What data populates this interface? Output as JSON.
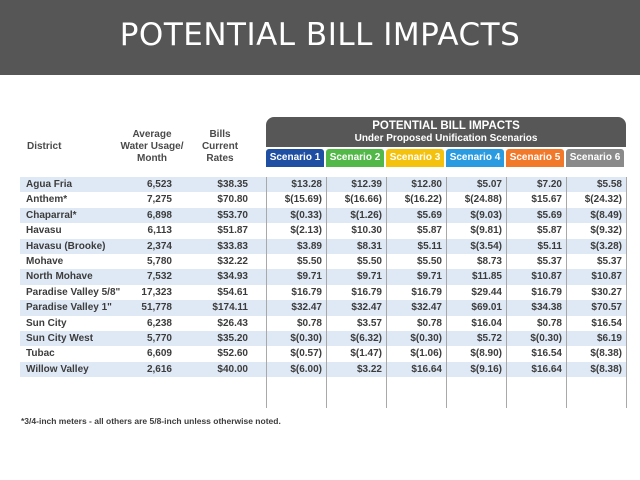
{
  "title": "POTENTIAL BILL IMPACTS",
  "headers": {
    "district": "District",
    "usage": [
      "Average",
      "Water Usage/",
      "Month"
    ],
    "bills": [
      "Bills",
      "Current",
      "Rates"
    ]
  },
  "banner": {
    "title": "POTENTIAL BILL IMPACTS",
    "subtitle": "Under Proposed Unification Scenarios"
  },
  "scenarios": [
    {
      "label": "Scenario 1",
      "color": "#1e4fa3"
    },
    {
      "label": "Scenario 2",
      "color": "#52b848"
    },
    {
      "label": "Scenario 3",
      "color": "#f4c20d"
    },
    {
      "label": "Scenario 4",
      "color": "#2a9be0"
    },
    {
      "label": "Scenario 5",
      "color": "#f2782a"
    },
    {
      "label": "Scenario 6",
      "color": "#8a8a8a"
    }
  ],
  "rows": [
    {
      "district": "Agua Fria",
      "usage": "6,523",
      "bills": "$38.35",
      "s": [
        "$13.28",
        "$12.39",
        "$12.80",
        "$5.07",
        "$7.20",
        "$5.58"
      ]
    },
    {
      "district": "Anthem*",
      "usage": "7,275",
      "bills": "$70.80",
      "s": [
        "$(15.69)",
        "$(16.66)",
        "$(16.22)",
        "$(24.88)",
        "$15.67",
        "$(24.32)"
      ]
    },
    {
      "district": "Chaparral*",
      "usage": "6,898",
      "bills": "$53.70",
      "s": [
        "$(0.33)",
        "$(1.26)",
        "$5.69",
        "$(9.03)",
        "$5.69",
        "$(8.49)"
      ]
    },
    {
      "district": "Havasu",
      "usage": "6,113",
      "bills": "$51.87",
      "s": [
        "$(2.13)",
        "$10.30",
        "$5.87",
        "$(9.81)",
        "$5.87",
        "$(9.32)"
      ]
    },
    {
      "district": "Havasu (Brooke)",
      "usage": "2,374",
      "bills": "$33.83",
      "s": [
        "$3.89",
        "$8.31",
        "$5.11",
        "$(3.54)",
        "$5.11",
        "$(3.28)"
      ]
    },
    {
      "district": "Mohave",
      "usage": "5,780",
      "bills": "$32.22",
      "s": [
        "$5.50",
        "$5.50",
        "$5.50",
        "$8.73",
        "$5.37",
        "$5.37"
      ]
    },
    {
      "district": "North Mohave",
      "usage": "7,532",
      "bills": "$34.93",
      "s": [
        "$9.71",
        "$9.71",
        "$9.71",
        "$11.85",
        "$10.87",
        "$10.87"
      ]
    },
    {
      "district": "Paradise Valley 5/8\"",
      "usage": "17,323",
      "bills": "$54.61",
      "s": [
        "$16.79",
        "$16.79",
        "$16.79",
        "$29.44",
        "$16.79",
        "$30.27"
      ]
    },
    {
      "district": "Paradise Valley 1\"",
      "usage": "51,778",
      "bills": "$174.11",
      "s": [
        "$32.47",
        "$32.47",
        "$32.47",
        "$69.01",
        "$34.38",
        "$70.57"
      ]
    },
    {
      "district": "Sun City",
      "usage": "6,238",
      "bills": "$26.43",
      "s": [
        "$0.78",
        "$3.57",
        "$0.78",
        "$16.04",
        "$0.78",
        "$16.54"
      ]
    },
    {
      "district": "Sun City West",
      "usage": "5,770",
      "bills": "$35.20",
      "s": [
        "$(0.30)",
        "$(6.32)",
        "$(0.30)",
        "$5.72",
        "$(0.30)",
        "$6.19"
      ]
    },
    {
      "district": "Tubac",
      "usage": "6,609",
      "bills": "$52.60",
      "s": [
        "$(0.57)",
        "$(1.47)",
        "$(1.06)",
        "$(8.90)",
        "$16.54",
        "$(8.38)"
      ]
    },
    {
      "district": "Willow Valley",
      "usage": "2,616",
      "bills": "$40.00",
      "s": [
        "$(6.00)",
        "$3.22",
        "$16.64",
        "$(9.16)",
        "$16.64",
        "$(8.38)"
      ]
    }
  ],
  "footnote": "*3/4-inch meters - all others are 5/8-inch unless otherwise noted."
}
